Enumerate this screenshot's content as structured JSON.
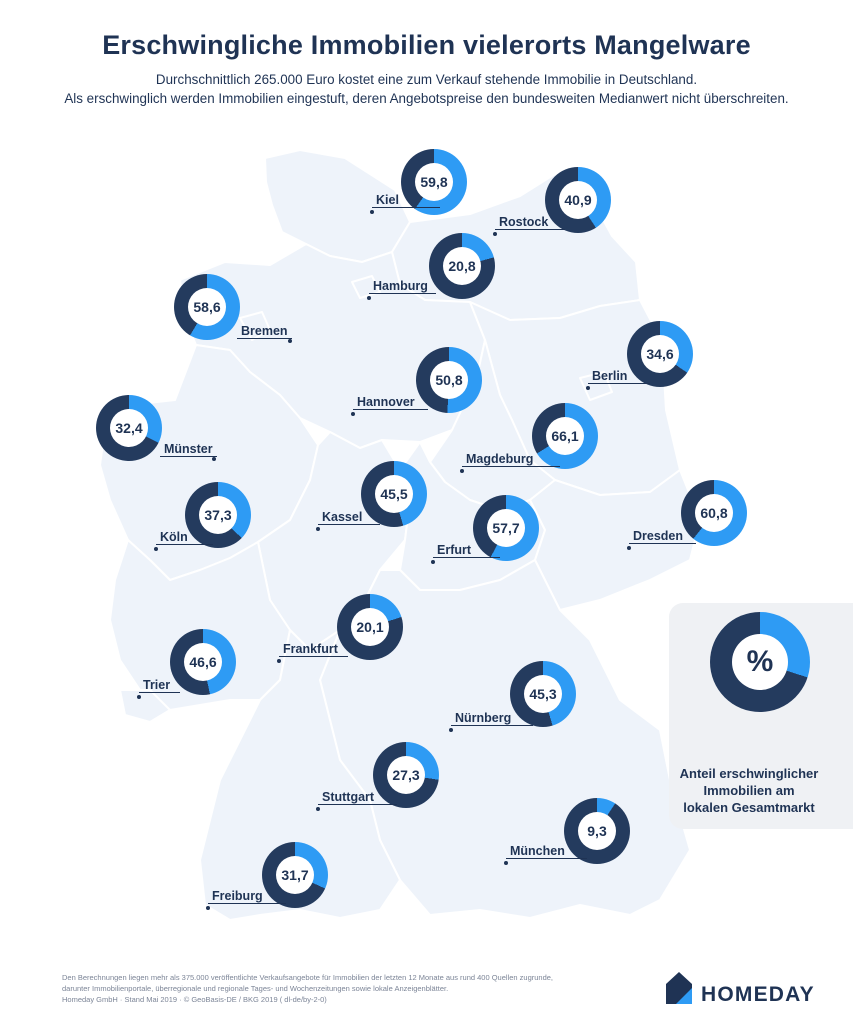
{
  "header": {
    "title": "Erschwingliche Immobilien vielerorts Mangelware",
    "subtitle_line1": "Durchschnittlich 265.000 Euro kostet eine zum Verkauf stehende Immobilie in Deutschland.",
    "subtitle_line2": "Als erschwinglich werden Immobilien eingestuft, deren Angebotspreise den bundesweiten Medianwert nicht überschreiten."
  },
  "colors": {
    "dark_ring": "#243b5e",
    "accent": "#2e9bf4",
    "map_fill": "#eef3fa",
    "map_border": "#ffffff"
  },
  "cities": [
    {
      "name": "Kiel",
      "value": "59,8",
      "share": 59.8
    },
    {
      "name": "Rostock",
      "value": "40,9",
      "share": 40.9
    },
    {
      "name": "Hamburg",
      "value": "20,8",
      "share": 20.8
    },
    {
      "name": "Bremen",
      "value": "58,6",
      "share": 58.6
    },
    {
      "name": "Berlin",
      "value": "34,6",
      "share": 34.6
    },
    {
      "name": "Hannover",
      "value": "50,8",
      "share": 50.8
    },
    {
      "name": "Münster",
      "value": "32,4",
      "share": 32.4
    },
    {
      "name": "Magdeburg",
      "value": "66,1",
      "share": 66.1
    },
    {
      "name": "Kassel",
      "value": "45,5",
      "share": 45.5
    },
    {
      "name": "Köln",
      "value": "37,3",
      "share": 37.3
    },
    {
      "name": "Erfurt",
      "value": "57,7",
      "share": 57.7
    },
    {
      "name": "Dresden",
      "value": "60,8",
      "share": 60.8
    },
    {
      "name": "Frankfurt",
      "value": "20,1",
      "share": 20.1
    },
    {
      "name": "Trier",
      "value": "46,6",
      "share": 46.6
    },
    {
      "name": "Nürnberg",
      "value": "45,3",
      "share": 45.3
    },
    {
      "name": "Stuttgart",
      "value": "27,3",
      "share": 27.3
    },
    {
      "name": "München",
      "value": "9,3",
      "share": 9.3
    },
    {
      "name": "Freiburg",
      "value": "31,7",
      "share": 31.7
    }
  ],
  "legend": {
    "symbol": "%",
    "share": 30,
    "line1": "Anteil erschwinglicher",
    "line2": "Immobilien am",
    "line3": "lokalen Gesamtmarkt"
  },
  "footnote": {
    "line1": "Den Berechnungen liegen mehr als 375.000 veröffentlichte Verkaufsangebote für Immobilien der letzten 12 Monate aus rund 400 Quellen zugrunde,",
    "line2": "darunter Immobilienportale, überregionale und regionale Tages- und Wochenzeitungen sowie lokale Anzeigenblätter.",
    "line3": "Homeday GmbH · Stand Mai 2019 · © GeoBasis-DE / BKG 2019 ( dl-de/by-2-0)"
  },
  "brand": {
    "name": "HOMEDAY",
    "logo_icon": "house-icon"
  }
}
